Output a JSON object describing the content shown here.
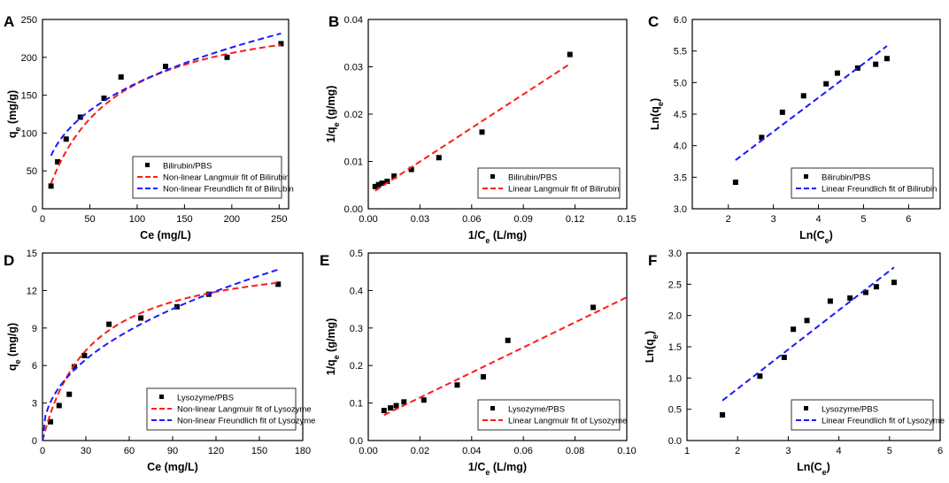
{
  "colors": {
    "langmuir": "#ff1a1a",
    "freundlich": "#1a1aff",
    "points": "#000000",
    "axes": "#000000"
  },
  "chart_data": [
    {
      "panel": "A",
      "type": "scatter",
      "xlabel": "Ce (mg/L)",
      "ylabel": "qe (mg/g)",
      "ylabel_base": "q",
      "ylabel_sub": "e",
      "ylabel_tail": " (mg/g)",
      "xlim": [
        0,
        260
      ],
      "ylim": [
        0,
        250
      ],
      "xticks": [
        0,
        50,
        100,
        150,
        200,
        250
      ],
      "yticks": [
        0,
        50,
        100,
        150,
        200,
        250
      ],
      "legend_position": "bottom-right",
      "series": [
        {
          "name": "Bilirubin/PBS",
          "kind": "points",
          "x": [
            9,
            16,
            25,
            40,
            65,
            83,
            130,
            195,
            252
          ],
          "y": [
            30,
            62,
            92,
            121,
            146,
            174,
            188,
            200,
            218
          ]
        },
        {
          "name": "Non-linear Langmuir fit of Bilirubin",
          "kind": "langmuir",
          "qm": 272,
          "kl": 0.0155,
          "x_range": [
            9,
            252
          ]
        },
        {
          "name": "Non-linear Freundlich fit of Bilirubin",
          "kind": "freundlich",
          "kf": 31.9,
          "n": 2.79,
          "x_range": [
            9,
            252
          ]
        }
      ]
    },
    {
      "panel": "B",
      "type": "scatter",
      "xlabel": "1/Ce (L/mg)",
      "ylabel": "1/qe (g/mg)",
      "xlabel_base": "1/C",
      "xlabel_sub": "e",
      "xlabel_tail": " (L/mg)",
      "ylabel_base": "1/q",
      "ylabel_sub": "e",
      "ylabel_tail": " (g/mg)",
      "xlim": [
        0,
        0.15
      ],
      "ylim": [
        0,
        0.04
      ],
      "xticks": [
        "0.00",
        "0.03",
        "0.06",
        "0.09",
        "0.12",
        "0.15"
      ],
      "yticks": [
        "0.00",
        "0.01",
        "0.02",
        "0.03",
        "0.04"
      ],
      "legend_position": "bottom-right",
      "series": [
        {
          "name": "Bilirubin/PBS",
          "kind": "points",
          "x": [
            0.004,
            0.006,
            0.008,
            0.011,
            0.015,
            0.025,
            0.041,
            0.066,
            0.117
          ],
          "y": [
            0.0047,
            0.0051,
            0.0054,
            0.0058,
            0.0069,
            0.0083,
            0.0108,
            0.0162,
            0.0326
          ]
        },
        {
          "name": "Linear Langmuir fit of Bilirubin",
          "kind": "line",
          "x": [
            0.004,
            0.117
          ],
          "y": [
            0.0038,
            0.0306
          ]
        }
      ]
    },
    {
      "panel": "C",
      "type": "scatter",
      "xlabel": "Ln(Ce)",
      "ylabel": "Ln(qe)",
      "xlabel_base": "Ln(C",
      "xlabel_sub": "e",
      "xlabel_tail": ")",
      "ylabel_base": "Ln(q",
      "ylabel_sub": "e",
      "ylabel_tail": ")",
      "xlim": [
        1.2,
        6.7
      ],
      "ylim": [
        3.0,
        6.0
      ],
      "xticks": [
        2,
        3,
        4,
        5,
        6
      ],
      "yticks": [
        "3.0",
        "3.5",
        "4.0",
        "4.5",
        "5.0",
        "5.5",
        "6.0"
      ],
      "legend_position": "bottom-right",
      "series": [
        {
          "name": "Bilirubin/PBS",
          "kind": "points",
          "x": [
            2.16,
            2.74,
            3.2,
            3.67,
            4.17,
            4.42,
            4.87,
            5.27,
            5.52
          ],
          "y": [
            3.42,
            4.13,
            4.53,
            4.79,
            4.98,
            5.15,
            5.23,
            5.29,
            5.38
          ]
        },
        {
          "name": "Linear Freundlich fit of Bilirubin",
          "kind": "line",
          "x": [
            2.16,
            5.52
          ],
          "y": [
            3.77,
            5.58
          ]
        }
      ]
    },
    {
      "panel": "D",
      "type": "scatter",
      "xlabel": "Ce (mg/L)",
      "ylabel": "qe (mg/g)",
      "ylabel_base": "q",
      "ylabel_sub": "e",
      "ylabel_tail": " (mg/g)",
      "xlim": [
        0,
        180
      ],
      "ylim": [
        0,
        15
      ],
      "xticks": [
        0,
        30,
        60,
        90,
        120,
        150,
        180
      ],
      "yticks": [
        0,
        3,
        6,
        9,
        12,
        15
      ],
      "legend_position": "bottom-right",
      "series": [
        {
          "name": "Lysozyme/PBS",
          "kind": "points",
          "x": [
            5.5,
            11.5,
            18.5,
            22,
            29,
            46,
            68,
            93,
            115,
            163
          ],
          "y": [
            1.5,
            2.8,
            3.7,
            5.9,
            6.8,
            9.3,
            9.8,
            10.7,
            11.7,
            12.5
          ]
        },
        {
          "name": "Non-linear Langmuir fit of Lysozyme",
          "kind": "langmuir",
          "qm": 15.2,
          "kl": 0.03,
          "x_range": [
            0,
            163
          ]
        },
        {
          "name": "Non-linear Freundlich fit of Lysozyme",
          "kind": "freundlich",
          "kf": 1.45,
          "n": 2.27,
          "x_range": [
            0,
            163
          ]
        }
      ]
    },
    {
      "panel": "E",
      "type": "scatter",
      "xlabel": "1/Ce (L/mg)",
      "ylabel": "1/qe (g/mg)",
      "xlabel_base": "1/C",
      "xlabel_sub": "e",
      "xlabel_tail": " (L/mg)",
      "ylabel_base": "1/q",
      "ylabel_sub": "e",
      "ylabel_tail": " (g/mg)",
      "xlim": [
        0,
        0.1
      ],
      "ylim": [
        0,
        0.5
      ],
      "xticks": [
        "0.00",
        "0.02",
        "0.04",
        "0.06",
        "0.08",
        "0.10"
      ],
      "yticks": [
        "0.0",
        "0.1",
        "0.2",
        "0.3",
        "0.4",
        "0.5"
      ],
      "legend_position": "bottom-right",
      "series": [
        {
          "name": "Lysozyme/PBS",
          "kind": "points",
          "x": [
            0.0061,
            0.0086,
            0.0108,
            0.0138,
            0.0215,
            0.0344,
            0.0445,
            0.054,
            0.087
          ],
          "y": [
            0.08,
            0.087,
            0.093,
            0.103,
            0.108,
            0.148,
            0.17,
            0.267,
            0.355
          ]
        },
        {
          "name": "Linear Langmuir fit of Lysozyme",
          "kind": "line",
          "x": [
            0.0061,
            0.1
          ],
          "y": [
            0.068,
            0.382
          ]
        }
      ]
    },
    {
      "panel": "F",
      "type": "scatter",
      "xlabel": "Ln(Ce)",
      "ylabel": "Ln(qe)",
      "xlabel_base": "Ln(C",
      "xlabel_sub": "e",
      "xlabel_tail": ")",
      "ylabel_base": "Ln(q",
      "ylabel_sub": "e",
      "ylabel_tail": ")",
      "xlim": [
        1,
        6
      ],
      "ylim": [
        0,
        3
      ],
      "xticks": [
        1,
        2,
        3,
        4,
        5,
        6
      ],
      "yticks": [
        "0.0",
        "0.5",
        "1.0",
        "1.5",
        "2.0",
        "2.5",
        "3.0"
      ],
      "legend_position": "bottom-right",
      "series": [
        {
          "name": "Lysozyme/PBS",
          "kind": "points",
          "x": [
            1.7,
            2.44,
            2.92,
            3.1,
            3.37,
            3.83,
            4.22,
            4.53,
            4.74,
            5.09
          ],
          "y": [
            0.41,
            1.03,
            1.33,
            1.78,
            1.92,
            2.23,
            2.28,
            2.37,
            2.46,
            2.53
          ]
        },
        {
          "name": "Linear Freundlich fit of Lysozyme",
          "kind": "line",
          "x": [
            1.7,
            5.09
          ],
          "y": [
            0.64,
            2.77
          ]
        }
      ]
    }
  ]
}
